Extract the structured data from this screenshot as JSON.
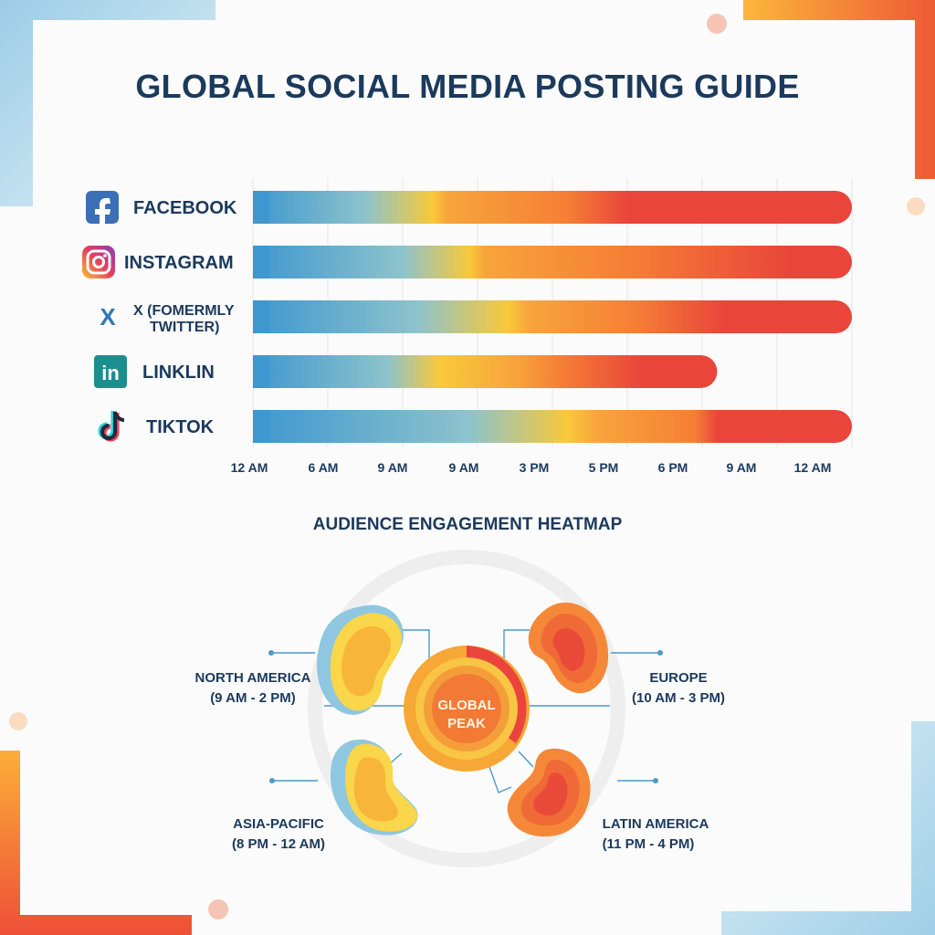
{
  "title": "GLOBAL SOCIAL MEDIA POSTING GUIDE",
  "chart_data": {
    "type": "bar",
    "x_ticks": [
      "12 AM",
      "6 AM",
      "9 AM",
      "9 AM",
      "3 PM",
      "5 PM",
      "6 PM",
      "9 AM",
      "12 AM"
    ],
    "x_range": [
      0,
      8
    ],
    "grid": true,
    "bars": [
      {
        "platform": "FACEBOOK",
        "icon": "facebook-icon",
        "start": 0,
        "end": 8,
        "cool_until": 2.4,
        "stops": [
          0,
          1.5,
          2.4,
          2.6,
          4.2,
          5.0,
          8
        ]
      },
      {
        "platform": "INSTAGRAM",
        "icon": "instagram-icon",
        "start": 0,
        "end": 8,
        "cool_until": 2.9,
        "stops": [
          0,
          2.0,
          2.9,
          3.1,
          5.0,
          7.2,
          8
        ]
      },
      {
        "platform": "X (FOMERMLY TWITTER)",
        "icon": "x-icon",
        "start": 0,
        "end": 8,
        "cool_until": 3.4,
        "stops": [
          0,
          2.2,
          3.4,
          3.7,
          5.1,
          6.3,
          8
        ]
      },
      {
        "platform": "LINKLIN",
        "icon": "linkedin-icon",
        "start": 0,
        "end": 6.2,
        "cool_until": 2.5,
        "stops": [
          0,
          1.8,
          2.5,
          3.5,
          4.1,
          5.2,
          6.2
        ]
      },
      {
        "platform": "TIKTOK",
        "icon": "tiktok-icon",
        "start": 0,
        "end": 8,
        "cool_until": 4.2,
        "stops": [
          0,
          2.9,
          4.2,
          4.6,
          5.9,
          6.2,
          8
        ]
      }
    ],
    "colors": [
      "#3f97cf",
      "#8dc3cc",
      "#f8c93a",
      "#f8a43c",
      "#f57f35",
      "#e9453b"
    ]
  },
  "heatmap": {
    "title": "AUDIENCE ENGAGEMENT HEATMAP",
    "center_label": [
      "GLOBAL",
      "PEAK"
    ],
    "regions": [
      {
        "name": "NORTH AMERICA",
        "hours": "(9 AM - 2 PM)",
        "warmth": "warm-with-cool-edge"
      },
      {
        "name": "EUROPE",
        "hours": "(10 AM - 3 PM)",
        "warmth": "hot"
      },
      {
        "name": "ASIA-PACIFIC",
        "hours": "(8 PM - 12 AM)",
        "warmth": "warm-with-cool-edge"
      },
      {
        "name": "LATIN AMERICA",
        "hours": "(11 PM - 4 PM)",
        "warmth": "hot"
      }
    ]
  }
}
